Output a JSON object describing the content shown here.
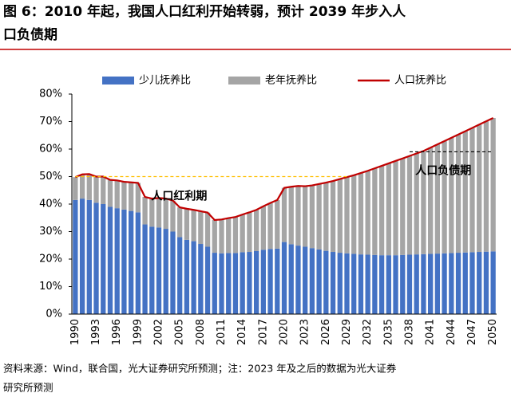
{
  "chart_data": {
    "type": "bar_line",
    "title": [
      "图 6：2010 年起，我国人口红利开始转弱，预计 2039 年步入人",
      "口负债期"
    ],
    "categories": [
      "1990",
      null,
      null,
      "1993",
      null,
      null,
      "1996",
      null,
      null,
      "1999",
      null,
      null,
      "2002",
      null,
      null,
      "2005",
      null,
      null,
      "2008",
      null,
      null,
      "2011",
      null,
      null,
      "2014",
      null,
      null,
      "2017",
      null,
      null,
      "2020",
      null,
      null,
      "2023",
      null,
      null,
      "2026",
      null,
      null,
      "2029",
      null,
      null,
      "2032",
      null,
      null,
      "2035",
      null,
      null,
      "2038",
      null,
      null,
      "2041",
      null,
      null,
      "2044",
      null,
      null,
      "2047",
      null,
      null,
      "2050"
    ],
    "series": [
      {
        "name": "少儿抚养比",
        "kind": "bar",
        "color": "#4472c4",
        "values": [
          41.5,
          42,
          41.5,
          40.5,
          40,
          39,
          38.5,
          38,
          37.5,
          37,
          32.6,
          31.8,
          31.5,
          31,
          30,
          28,
          27,
          26.5,
          25.5,
          24.5,
          22.3,
          22.1,
          22.2,
          22.2,
          22.5,
          22.6,
          22.9,
          23.4,
          23.7,
          23.8,
          26.2,
          25.4,
          24.9,
          24.5,
          24,
          23.5,
          23,
          22.6,
          22.3,
          22.1,
          21.9,
          21.7,
          21.6,
          21.5,
          21.4,
          21.4,
          21.4,
          21.5,
          21.6,
          21.7,
          21.8,
          21.9,
          22,
          22.1,
          22.2,
          22.3,
          22.4,
          22.5,
          22.6,
          22.7,
          22.8
        ]
      },
      {
        "name": "老年抚养比",
        "kind": "bar",
        "color": "#a5a5a5",
        "values": [
          8.3,
          8.8,
          9.4,
          9.5,
          10,
          9.8,
          10.1,
          10.1,
          10.4,
          10.7,
          10,
          10.2,
          10.7,
          11,
          11.3,
          10.8,
          11.3,
          11.4,
          11.9,
          12.4,
          11.9,
          12.3,
          12.7,
          13.1,
          13.7,
          14.4,
          15,
          15.8,
          16.7,
          17.7,
          19.7,
          20.9,
          21.7,
          22,
          22.8,
          23.8,
          24.8,
          25.8,
          26.8,
          27.7,
          28.6,
          29.6,
          30.5,
          31.5,
          32.5,
          33.4,
          34.3,
          35.1,
          35.9,
          36.7,
          37.5,
          38.6,
          39.7,
          40.8,
          41.9,
          43,
          44.1,
          45.2,
          46.3,
          47.4,
          48.5
        ]
      },
      {
        "name": "人口抚养比",
        "kind": "line",
        "color": "#c00000",
        "values": [
          49.8,
          50.8,
          50.9,
          50,
          50,
          48.8,
          48.6,
          48.1,
          47.9,
          47.7,
          42.6,
          42,
          42.2,
          42,
          41.3,
          38.8,
          38.3,
          37.9,
          37.4,
          36.9,
          34.2,
          34.4,
          34.9,
          35.3,
          36.2,
          37,
          37.9,
          39.2,
          40.4,
          41.5,
          45.9,
          46.3,
          46.6,
          46.5,
          46.8,
          47.3,
          47.8,
          48.4,
          49.1,
          49.8,
          50.5,
          51.3,
          52.1,
          53,
          53.9,
          54.8,
          55.7,
          56.6,
          57.5,
          58.4,
          59.3,
          60.5,
          61.7,
          62.9,
          64.1,
          65.3,
          66.5,
          67.7,
          68.9,
          70.1,
          71.3
        ]
      }
    ],
    "ylim": [
      0,
      80
    ],
    "yticks": [
      {
        "value": 0,
        "label": "0%"
      },
      {
        "value": 10,
        "label": "10%"
      },
      {
        "value": 20,
        "label": "20%"
      },
      {
        "value": 30,
        "label": "30%"
      },
      {
        "value": 40,
        "label": "40%"
      },
      {
        "value": 50,
        "label": "50%"
      },
      {
        "value": 60,
        "label": "60%"
      },
      {
        "value": 70,
        "label": "70%"
      },
      {
        "value": 80,
        "label": "80%"
      }
    ],
    "annotations": [
      {
        "text": "人口红利期",
        "y": 50,
        "x_start": 1990,
        "x_end": 2029,
        "color": "#ffc000"
      },
      {
        "text": "人口负债期",
        "y": 59,
        "x_start": 2038,
        "x_end": 2050,
        "color": "#c00000"
      }
    ],
    "source": [
      "资料来源：Wind，联合国，光大证券研究所预测；注：2023 年及之后的数据为光大证券",
      "研究所预测"
    ]
  }
}
